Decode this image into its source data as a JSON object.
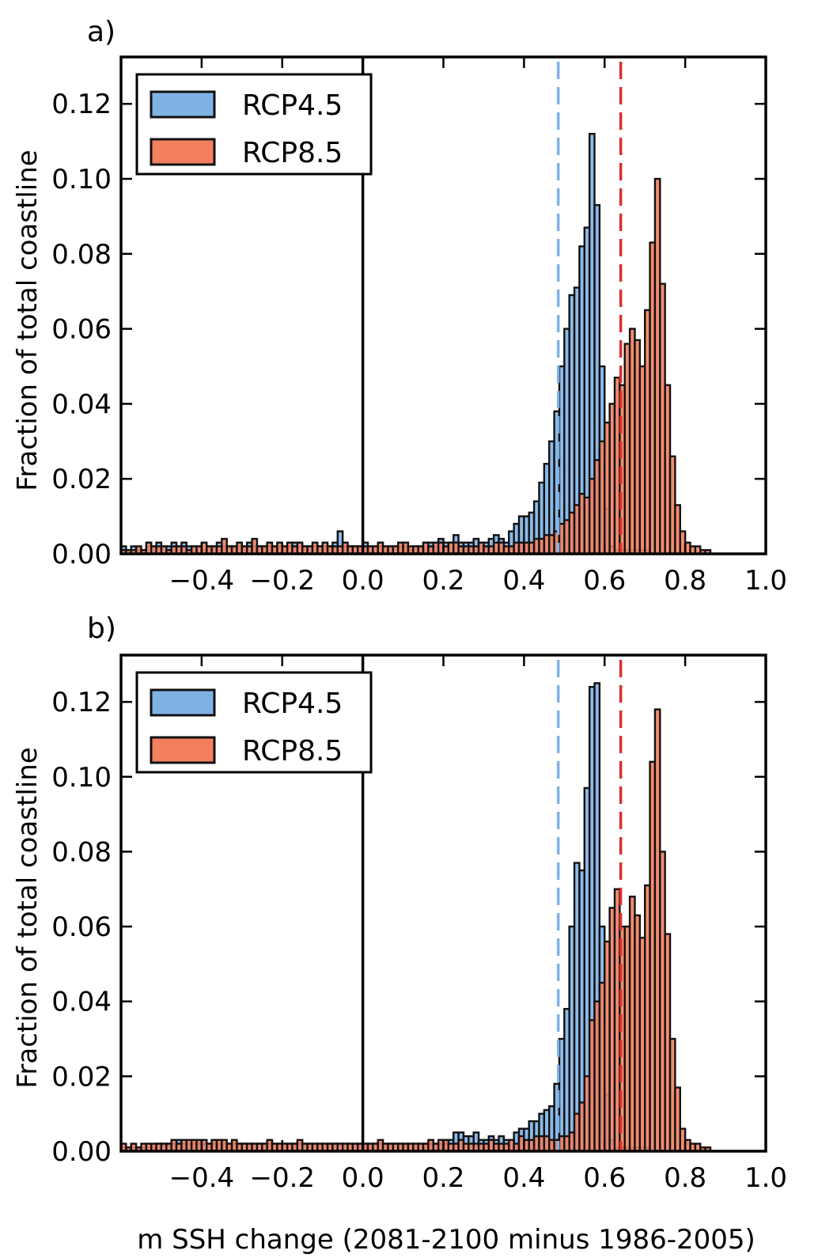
{
  "figure": {
    "xlabel": "m SSH change (2081-2100 minus 1986-2005)"
  },
  "chart_data": [
    {
      "type": "bar",
      "panel_label": "a)",
      "ylabel": "Fraction of total coastline",
      "xlim": [
        -0.6,
        1.0
      ],
      "ylim": [
        0,
        0.1325
      ],
      "xticks": [
        -0.4,
        -0.2,
        0.0,
        0.2,
        0.4,
        0.6,
        0.8,
        1.0
      ],
      "xtick_labels": [
        "−0.4",
        "−0.2",
        "0.0",
        "0.2",
        "0.4",
        "0.6",
        "0.8",
        "1.0"
      ],
      "yticks": [
        0.0,
        0.02,
        0.04,
        0.06,
        0.08,
        0.1,
        0.12
      ],
      "ytick_labels": [
        "0.00",
        "0.02",
        "0.04",
        "0.06",
        "0.08",
        "0.10",
        "0.12"
      ],
      "zero_line": 0.0,
      "legend": "top-left",
      "bin_width": 0.0125,
      "series": [
        {
          "name": "RCP4.5",
          "color": "#7fb2e5",
          "dashed_line_color": "#7fb2e5",
          "mean_line": 0.485,
          "bin_start": -0.6,
          "values": [
            0.002,
            0.001,
            0.002,
            0.001,
            0.001,
            0.002,
            0.002,
            0.003,
            0.002,
            0.002,
            0.003,
            0.002,
            0.003,
            0.002,
            0.002,
            0.002,
            0.001,
            0.002,
            0.002,
            0.003,
            0.002,
            0.002,
            0.002,
            0.002,
            0.002,
            0.003,
            0.002,
            0.002,
            0.002,
            0.002,
            0.002,
            0.002,
            0.002,
            0.002,
            0.003,
            0.002,
            0.002,
            0.002,
            0.002,
            0.002,
            0.002,
            0.002,
            0.003,
            0.006,
            0.002,
            0.002,
            0.002,
            0.002,
            0.003,
            0.002,
            0.002,
            0.002,
            0.002,
            0.002,
            0.002,
            0.002,
            0.002,
            0.001,
            0.002,
            0.002,
            0.003,
            0.003,
            0.002,
            0.004,
            0.003,
            0.003,
            0.005,
            0.003,
            0.003,
            0.003,
            0.004,
            0.003,
            0.003,
            0.004,
            0.005,
            0.004,
            0.003,
            0.006,
            0.008,
            0.01,
            0.01,
            0.011,
            0.014,
            0.019,
            0.024,
            0.03,
            0.038,
            0.05,
            0.06,
            0.069,
            0.071,
            0.082,
            0.087,
            0.112,
            0.093,
            0.05,
            0.012,
            0.002,
            0.001,
            0.001,
            0.001,
            0.001,
            0.001,
            0.001,
            0.001,
            0.0,
            0.0,
            0.0,
            0.0,
            0.0,
            0.0,
            0.0,
            0.0,
            0.0,
            0.0,
            0.0,
            0.0,
            0.0,
            0.0,
            0.0,
            0.0,
            0.0,
            0.0,
            0.0,
            0.0,
            0.0,
            0.0,
            0.0
          ]
        },
        {
          "name": "RCP8.5",
          "color": "#f28060",
          "dashed_line_color": "#d9302a",
          "mean_line": 0.64,
          "bin_start": -0.6,
          "values": [
            0.001,
            0.001,
            0.001,
            0.002,
            0.001,
            0.003,
            0.002,
            0.002,
            0.002,
            0.001,
            0.002,
            0.002,
            0.002,
            0.001,
            0.002,
            0.002,
            0.003,
            0.002,
            0.002,
            0.002,
            0.004,
            0.002,
            0.002,
            0.003,
            0.002,
            0.002,
            0.004,
            0.002,
            0.002,
            0.003,
            0.002,
            0.003,
            0.002,
            0.003,
            0.002,
            0.003,
            0.002,
            0.002,
            0.003,
            0.002,
            0.003,
            0.002,
            0.002,
            0.002,
            0.003,
            0.002,
            0.002,
            0.002,
            0.002,
            0.002,
            0.002,
            0.003,
            0.002,
            0.002,
            0.002,
            0.003,
            0.003,
            0.002,
            0.002,
            0.002,
            0.003,
            0.002,
            0.003,
            0.003,
            0.002,
            0.003,
            0.003,
            0.002,
            0.002,
            0.002,
            0.002,
            0.003,
            0.002,
            0.002,
            0.003,
            0.003,
            0.002,
            0.002,
            0.003,
            0.003,
            0.003,
            0.003,
            0.004,
            0.004,
            0.005,
            0.005,
            0.006,
            0.008,
            0.009,
            0.011,
            0.013,
            0.016,
            0.015,
            0.02,
            0.025,
            0.03,
            0.035,
            0.04,
            0.047,
            0.045,
            0.056,
            0.06,
            0.057,
            0.05,
            0.065,
            0.083,
            0.1,
            0.072,
            0.045,
            0.026,
            0.013,
            0.006,
            0.003,
            0.002,
            0.002,
            0.001,
            0.001,
            0.0,
            0.0,
            0.0,
            0.0,
            0.0,
            0.0,
            0.0,
            0.0,
            0.0,
            0.0,
            0.0
          ]
        }
      ]
    },
    {
      "type": "bar",
      "panel_label": "b)",
      "ylabel": "Fraction of total coastline",
      "xlim": [
        -0.6,
        1.0
      ],
      "ylim": [
        0,
        0.1325
      ],
      "xticks": [
        -0.4,
        -0.2,
        0.0,
        0.2,
        0.4,
        0.6,
        0.8,
        1.0
      ],
      "xtick_labels": [
        "−0.4",
        "−0.2",
        "0.0",
        "0.2",
        "0.4",
        "0.6",
        "0.8",
        "1.0"
      ],
      "yticks": [
        0.0,
        0.02,
        0.04,
        0.06,
        0.08,
        0.1,
        0.12
      ],
      "ytick_labels": [
        "0.00",
        "0.02",
        "0.04",
        "0.06",
        "0.08",
        "0.10",
        "0.12"
      ],
      "zero_line": 0.0,
      "legend": "top-left",
      "bin_width": 0.0125,
      "series": [
        {
          "name": "RCP4.5",
          "color": "#7fb2e5",
          "dashed_line_color": "#7fb2e5",
          "mean_line": 0.485,
          "bin_start": -0.6,
          "values": [
            0.001,
            0.001,
            0.001,
            0.001,
            0.001,
            0.001,
            0.001,
            0.002,
            0.002,
            0.002,
            0.002,
            0.003,
            0.002,
            0.002,
            0.002,
            0.002,
            0.002,
            0.002,
            0.002,
            0.002,
            0.002,
            0.002,
            0.002,
            0.002,
            0.002,
            0.002,
            0.002,
            0.002,
            0.002,
            0.002,
            0.002,
            0.002,
            0.002,
            0.002,
            0.002,
            0.002,
            0.002,
            0.002,
            0.002,
            0.002,
            0.002,
            0.002,
            0.002,
            0.002,
            0.002,
            0.002,
            0.002,
            0.002,
            0.002,
            0.002,
            0.002,
            0.002,
            0.002,
            0.002,
            0.002,
            0.002,
            0.002,
            0.002,
            0.002,
            0.002,
            0.002,
            0.002,
            0.002,
            0.002,
            0.002,
            0.003,
            0.005,
            0.005,
            0.004,
            0.004,
            0.005,
            0.003,
            0.003,
            0.004,
            0.003,
            0.004,
            0.003,
            0.003,
            0.005,
            0.006,
            0.006,
            0.008,
            0.008,
            0.01,
            0.011,
            0.012,
            0.018,
            0.03,
            0.038,
            0.06,
            0.077,
            0.075,
            0.097,
            0.124,
            0.125,
            0.06,
            0.015,
            0.003,
            0.001,
            0.001,
            0.001,
            0.001,
            0.001,
            0.001,
            0.001,
            0.0,
            0.0,
            0.0,
            0.0,
            0.0,
            0.0,
            0.0,
            0.0,
            0.0,
            0.0,
            0.0,
            0.0,
            0.0,
            0.0,
            0.0,
            0.0,
            0.0,
            0.0,
            0.0,
            0.0,
            0.0,
            0.0,
            0.0
          ]
        },
        {
          "name": "RCP8.5",
          "color": "#f28060",
          "dashed_line_color": "#d9302a",
          "mean_line": 0.64,
          "bin_start": -0.6,
          "values": [
            0.002,
            0.001,
            0.002,
            0.001,
            0.002,
            0.002,
            0.002,
            0.002,
            0.002,
            0.002,
            0.003,
            0.002,
            0.003,
            0.003,
            0.003,
            0.003,
            0.003,
            0.002,
            0.003,
            0.003,
            0.003,
            0.002,
            0.003,
            0.002,
            0.002,
            0.002,
            0.002,
            0.002,
            0.002,
            0.003,
            0.002,
            0.002,
            0.002,
            0.002,
            0.002,
            0.003,
            0.002,
            0.002,
            0.002,
            0.002,
            0.002,
            0.002,
            0.002,
            0.002,
            0.002,
            0.002,
            0.002,
            0.002,
            0.002,
            0.002,
            0.002,
            0.003,
            0.002,
            0.002,
            0.002,
            0.002,
            0.002,
            0.002,
            0.002,
            0.002,
            0.002,
            0.003,
            0.002,
            0.003,
            0.003,
            0.002,
            0.002,
            0.003,
            0.002,
            0.002,
            0.002,
            0.002,
            0.002,
            0.003,
            0.002,
            0.002,
            0.002,
            0.003,
            0.002,
            0.004,
            0.003,
            0.003,
            0.004,
            0.004,
            0.004,
            0.003,
            0.003,
            0.004,
            0.004,
            0.005,
            0.01,
            0.013,
            0.02,
            0.035,
            0.04,
            0.045,
            0.056,
            0.065,
            0.07,
            0.06,
            0.06,
            0.068,
            0.063,
            0.057,
            0.071,
            0.104,
            0.118,
            0.08,
            0.058,
            0.03,
            0.017,
            0.006,
            0.003,
            0.002,
            0.002,
            0.001,
            0.001,
            0.0,
            0.0,
            0.0,
            0.0,
            0.0,
            0.0,
            0.0,
            0.0,
            0.0,
            0.0,
            0.0
          ]
        }
      ]
    }
  ]
}
